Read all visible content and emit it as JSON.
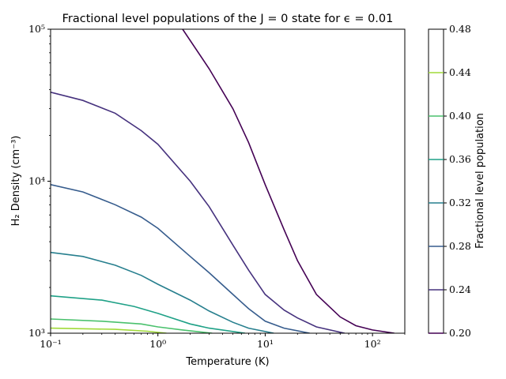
{
  "chart_data": {
    "type": "line",
    "title": "Fractional level populations of the J = 0 state for ϵ = 0.01",
    "xlabel": "Temperature (K)",
    "ylabel": "H₂ Density (cm⁻³)",
    "xscale": "log",
    "yscale": "log",
    "xlim": [
      0.1,
      200
    ],
    "ylim": [
      1000,
      100000
    ],
    "xticks": [
      {
        "value": 0.1,
        "label": "10⁻¹"
      },
      {
        "value": 1,
        "label": "10⁰"
      },
      {
        "value": 10,
        "label": "10¹"
      },
      {
        "value": 100,
        "label": "10²"
      }
    ],
    "yticks": [
      {
        "value": 1000,
        "label": "10³"
      },
      {
        "value": 10000,
        "label": "10⁴"
      },
      {
        "value": 100000,
        "label": "10⁵"
      }
    ],
    "grid": false,
    "colorbar": {
      "label": "Fractional level population",
      "min": 0.2,
      "max": 0.48,
      "ticks": [
        "0.20",
        "0.24",
        "0.28",
        "0.32",
        "0.36",
        "0.40",
        "0.44",
        "0.48"
      ]
    },
    "series": [
      {
        "level": 0.2,
        "color": "#440154",
        "x": [
          1.7,
          3,
          5,
          7,
          10,
          15,
          20,
          30,
          50,
          70,
          100,
          160
        ],
        "y": [
          100000,
          55000,
          30000,
          18000,
          9500,
          4800,
          3000,
          1800,
          1280,
          1120,
          1050,
          1000
        ]
      },
      {
        "level": 0.24,
        "color": "#46327e",
        "x": [
          0.1,
          0.2,
          0.4,
          0.7,
          1,
          2,
          3,
          5,
          7,
          10,
          15,
          20,
          30,
          55
        ],
        "y": [
          38500,
          34000,
          28000,
          21500,
          17500,
          10000,
          6800,
          3800,
          2600,
          1800,
          1420,
          1260,
          1100,
          1000
        ]
      },
      {
        "level": 0.28,
        "color": "#365c8d",
        "x": [
          0.1,
          0.2,
          0.4,
          0.7,
          1,
          2,
          3,
          5,
          7,
          10,
          15,
          26
        ],
        "y": [
          9500,
          8500,
          7000,
          5800,
          4900,
          3200,
          2500,
          1800,
          1450,
          1200,
          1080,
          1000
        ]
      },
      {
        "level": 0.32,
        "color": "#277f8e",
        "x": [
          0.1,
          0.2,
          0.4,
          0.7,
          1,
          2,
          3,
          5,
          7,
          12
        ],
        "y": [
          3400,
          3200,
          2800,
          2400,
          2100,
          1650,
          1400,
          1180,
          1080,
          1000
        ]
      },
      {
        "level": 0.36,
        "color": "#1fa187",
        "x": [
          0.1,
          0.3,
          0.6,
          1,
          2,
          3,
          6.5
        ],
        "y": [
          1760,
          1650,
          1500,
          1350,
          1150,
          1080,
          1000
        ]
      },
      {
        "level": 0.4,
        "color": "#4ac16d",
        "x": [
          0.1,
          0.3,
          0.7,
          1,
          1.7,
          3.2
        ],
        "y": [
          1240,
          1200,
          1150,
          1100,
          1050,
          1000
        ]
      },
      {
        "level": 0.44,
        "color": "#a0da39",
        "x": [
          0.1,
          0.4,
          0.8,
          1.2
        ],
        "y": [
          1080,
          1060,
          1030,
          1000
        ]
      }
    ]
  }
}
